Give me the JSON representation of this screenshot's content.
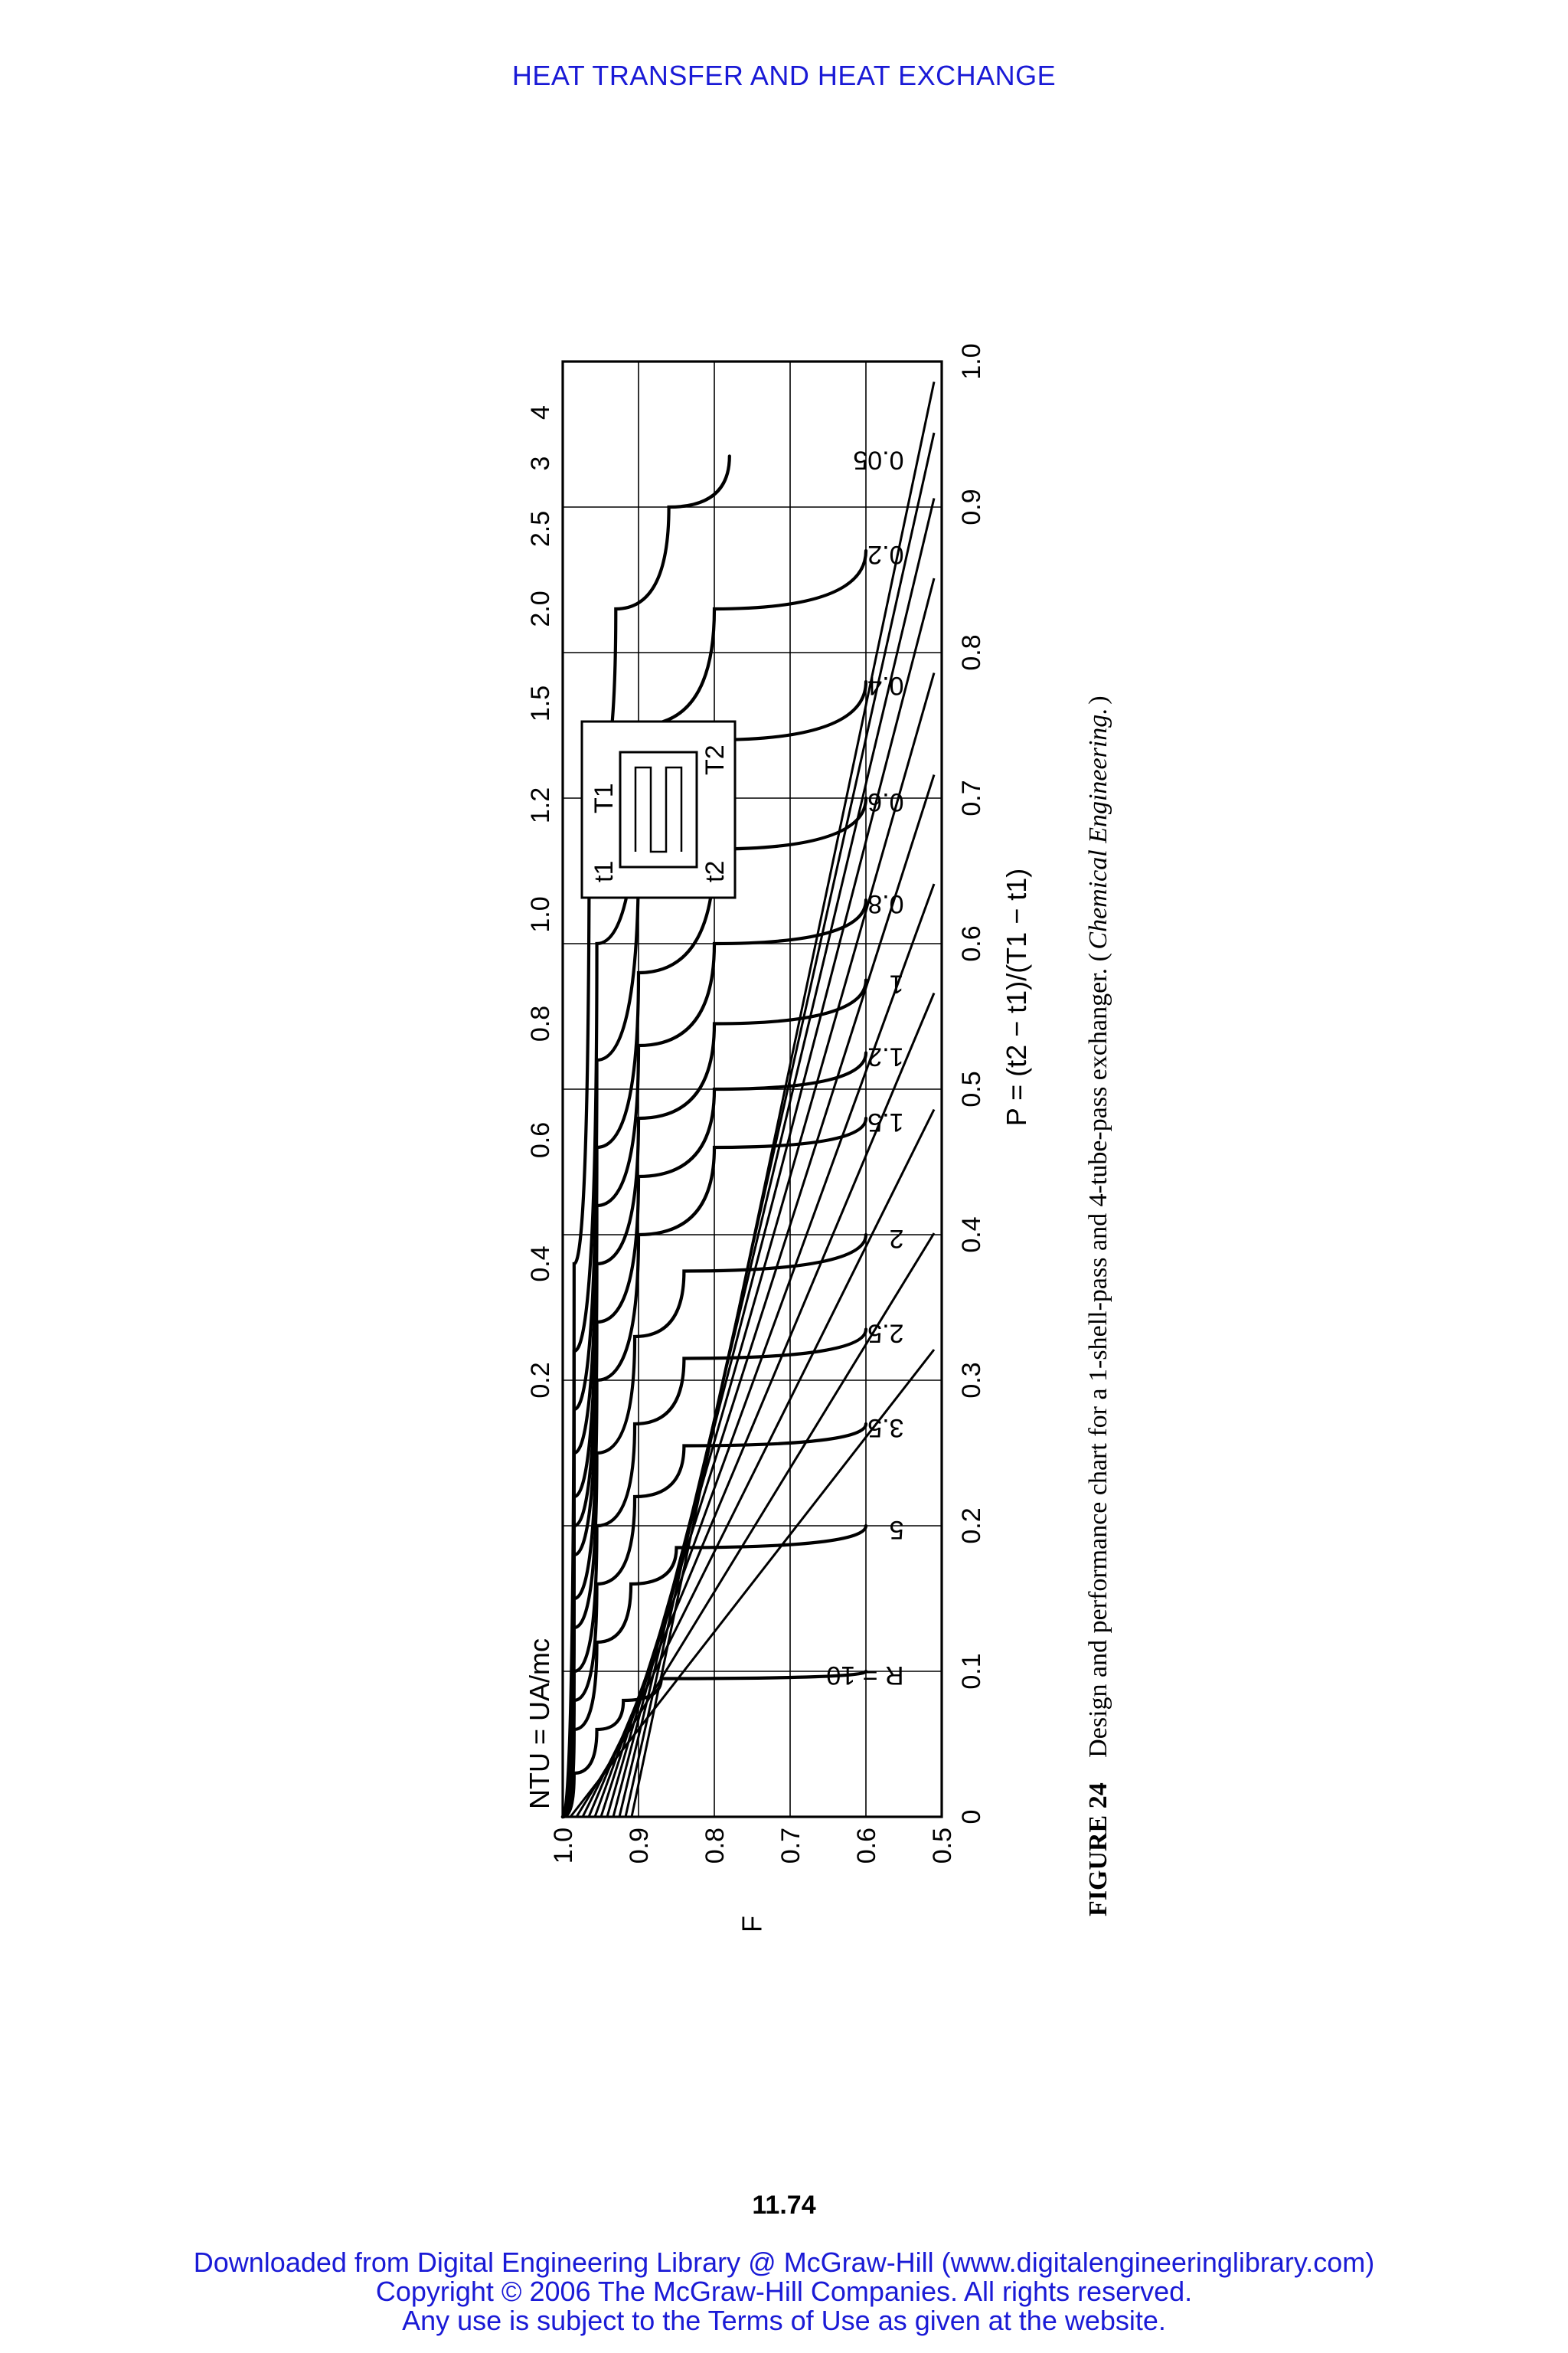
{
  "page": {
    "running_head": "HEAT TRANSFER AND HEAT EXCHANGE",
    "page_number": "11.74",
    "footer": [
      "Downloaded from Digital Engineering Library @ McGraw-Hill (www.digitalengineeringlibrary.com)",
      "Copyright © 2006 The McGraw-Hill Companies. All rights reserved.",
      "Any use is subject to the Terms of Use as given at the website."
    ]
  },
  "figure": {
    "caption_label": "FIGURE 24",
    "caption_text": "Design and performance chart for a 1-shell-pass and 4-tube-pass exchanger. (",
    "caption_italic": "Chemical Engineering.",
    "caption_close": ")",
    "orientation": "rotated 90 degrees counter-clockwise on the page",
    "inset_labels": {
      "t1": "t1",
      "t2": "t2",
      "T1": "T1",
      "T2": "T2"
    }
  },
  "chart_data": {
    "type": "line",
    "title": "",
    "xlabel": "P = (t2 − t1)/(T1 − t1)",
    "ylabel": "F",
    "top_axis_label": "NTU = UA/mc",
    "xlim": [
      0,
      1.0
    ],
    "ylim": [
      0.5,
      1.0
    ],
    "grid": true,
    "x_ticks": [
      "0",
      "0.1",
      "0.2",
      "0.3",
      "0.4",
      "0.5",
      "0.6",
      "0.7",
      "0.8",
      "0.9",
      "1.0"
    ],
    "y_ticks": [
      "1.0",
      "0.9",
      "0.8",
      "0.7",
      "0.6",
      "0.5"
    ],
    "ntu_ticks": [
      "0.2",
      "0.4",
      "0.6",
      "0.8",
      "1.0",
      "1.2",
      "1.5",
      "2.0",
      "2.5",
      "3",
      "4"
    ],
    "r_label_prefix": "R = ",
    "series": [
      {
        "name": "10",
        "values": [
          [
            0,
            1.0
          ],
          [
            0.03,
            0.985
          ],
          [
            0.06,
            0.955
          ],
          [
            0.08,
            0.92
          ],
          [
            0.095,
            0.87
          ],
          [
            0.1,
            0.6
          ]
        ]
      },
      {
        "name": "5",
        "values": [
          [
            0,
            1.0
          ],
          [
            0.06,
            0.985
          ],
          [
            0.12,
            0.955
          ],
          [
            0.16,
            0.91
          ],
          [
            0.185,
            0.85
          ],
          [
            0.2,
            0.6
          ]
        ]
      },
      {
        "name": "3.5",
        "values": [
          [
            0,
            1.0
          ],
          [
            0.08,
            0.985
          ],
          [
            0.16,
            0.955
          ],
          [
            0.22,
            0.905
          ],
          [
            0.255,
            0.84
          ],
          [
            0.27,
            0.6
          ]
        ]
      },
      {
        "name": "2.5",
        "values": [
          [
            0,
            1.0
          ],
          [
            0.1,
            0.985
          ],
          [
            0.2,
            0.955
          ],
          [
            0.27,
            0.905
          ],
          [
            0.315,
            0.84
          ],
          [
            0.335,
            0.6
          ]
        ]
      },
      {
        "name": "2",
        "values": [
          [
            0,
            1.0
          ],
          [
            0.13,
            0.985
          ],
          [
            0.25,
            0.955
          ],
          [
            0.33,
            0.905
          ],
          [
            0.375,
            0.84
          ],
          [
            0.4,
            0.6
          ]
        ]
      },
      {
        "name": "1.5",
        "values": [
          [
            0,
            1.0
          ],
          [
            0.15,
            0.985
          ],
          [
            0.3,
            0.955
          ],
          [
            0.4,
            0.9
          ],
          [
            0.46,
            0.8
          ],
          [
            0.48,
            0.6
          ]
        ]
      },
      {
        "name": "1.2",
        "values": [
          [
            0,
            1.0
          ],
          [
            0.18,
            0.985
          ],
          [
            0.34,
            0.955
          ],
          [
            0.44,
            0.9
          ],
          [
            0.5,
            0.8
          ],
          [
            0.525,
            0.6
          ]
        ]
      },
      {
        "name": "1",
        "values": [
          [
            0,
            1.0
          ],
          [
            0.2,
            0.985
          ],
          [
            0.38,
            0.955
          ],
          [
            0.48,
            0.9
          ],
          [
            0.545,
            0.8
          ],
          [
            0.575,
            0.6
          ]
        ]
      },
      {
        "name": "0.8",
        "values": [
          [
            0,
            1.0
          ],
          [
            0.22,
            0.985
          ],
          [
            0.42,
            0.955
          ],
          [
            0.53,
            0.9
          ],
          [
            0.6,
            0.8
          ],
          [
            0.63,
            0.6
          ]
        ]
      },
      {
        "name": "0.6",
        "values": [
          [
            0,
            1.0
          ],
          [
            0.25,
            0.985
          ],
          [
            0.46,
            0.955
          ],
          [
            0.58,
            0.9
          ],
          [
            0.665,
            0.8
          ],
          [
            0.7,
            0.6
          ]
        ]
      },
      {
        "name": "0.4",
        "values": [
          [
            0,
            1.0
          ],
          [
            0.28,
            0.985
          ],
          [
            0.52,
            0.955
          ],
          [
            0.66,
            0.9
          ],
          [
            0.74,
            0.8
          ],
          [
            0.78,
            0.6
          ]
        ]
      },
      {
        "name": "0.2",
        "values": [
          [
            0,
            1.0
          ],
          [
            0.32,
            0.985
          ],
          [
            0.6,
            0.955
          ],
          [
            0.75,
            0.9
          ],
          [
            0.83,
            0.8
          ],
          [
            0.87,
            0.6
          ]
        ]
      },
      {
        "name": "0.05",
        "values": [
          [
            0,
            1.0
          ],
          [
            0.38,
            0.985
          ],
          [
            0.7,
            0.965
          ],
          [
            0.83,
            0.93
          ],
          [
            0.9,
            0.86
          ],
          [
            0.935,
            0.78
          ]
        ]
      }
    ]
  }
}
